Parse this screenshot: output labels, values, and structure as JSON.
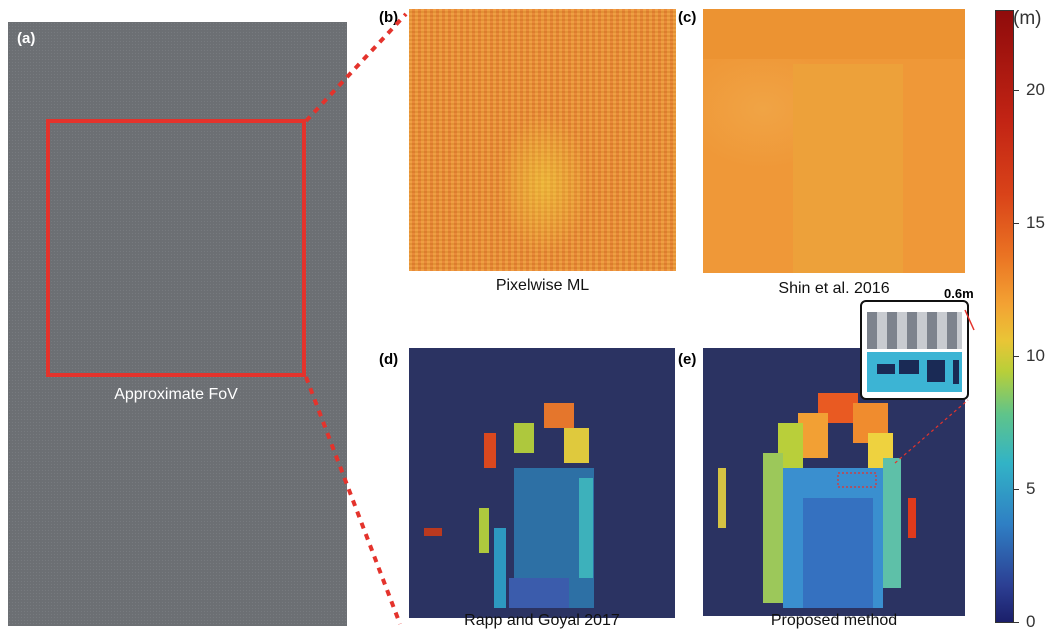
{
  "panels": {
    "a": {
      "label": "(a)",
      "caption": "Approximate FoV"
    },
    "b": {
      "label": "(b)",
      "caption": "Pixelwise ML"
    },
    "c": {
      "label": "(c)",
      "caption": "Shin et al. 2016"
    },
    "d": {
      "label": "(d)",
      "caption": "Rapp and Goyal 2017"
    },
    "e": {
      "label": "(e)",
      "caption": "Proposed method"
    }
  },
  "inset": {
    "scale_label": "0.6m"
  },
  "colorbar": {
    "unit": "(m)",
    "ticks": [
      "0",
      "5",
      "10",
      "15",
      "20"
    ],
    "range": [
      0,
      23
    ],
    "colormap": "jet"
  },
  "colors": {
    "fov_box": "#e4332c",
    "background_depth": "#2b3362"
  }
}
